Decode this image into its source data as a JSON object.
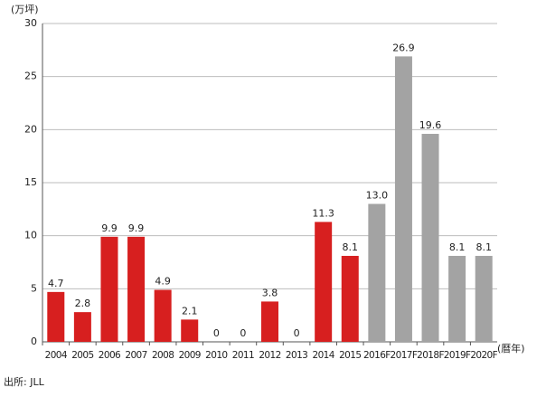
{
  "chart_data": {
    "type": "bar",
    "y_label": "(万坪)",
    "x_label": "(暦年)",
    "source": "出所: JLL",
    "categories": [
      "2004",
      "2005",
      "2006",
      "2007",
      "2008",
      "2009",
      "2010",
      "2011",
      "2012",
      "2013",
      "2014",
      "2015",
      "2016F",
      "2017F",
      "2018F",
      "2019F",
      "2020F"
    ],
    "values": [
      4.7,
      2.8,
      9.9,
      9.9,
      4.9,
      2.1,
      0,
      0,
      3.8,
      0,
      11.3,
      8.1,
      13.0,
      26.9,
      19.6,
      8.1,
      8.1
    ],
    "value_labels": [
      "4.7",
      "2.8",
      "9.9",
      "9.9",
      "4.9",
      "2.1",
      "0",
      "0",
      "3.8",
      "0",
      "11.3",
      "8.1",
      "13.0",
      "26.9",
      "19.6",
      "8.1",
      "8.1"
    ],
    "colors": [
      "#d71f1f",
      "#d71f1f",
      "#d71f1f",
      "#d71f1f",
      "#d71f1f",
      "#d71f1f",
      "#d71f1f",
      "#d71f1f",
      "#d71f1f",
      "#d71f1f",
      "#d71f1f",
      "#d71f1f",
      "#a3a3a3",
      "#a3a3a3",
      "#a3a3a3",
      "#a3a3a3",
      "#a3a3a3"
    ],
    "ylim": [
      0,
      30
    ],
    "yticks": [
      0,
      5,
      10,
      15,
      20,
      25,
      30
    ],
    "grid": true
  }
}
